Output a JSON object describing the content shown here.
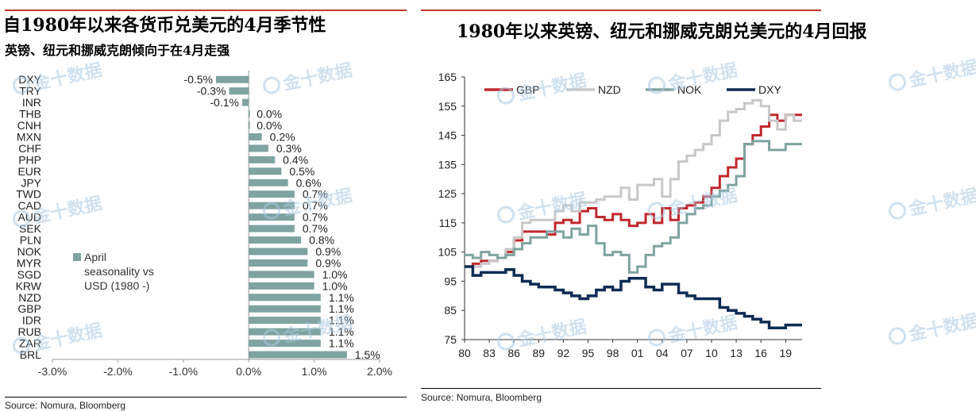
{
  "left": {
    "title": "自1980年以来各货币兑美元的4月季节性",
    "subtitle": "英镑、纽元和挪威克朗倾向于在4月走强",
    "source": "Source: Nomura, Bloomberg",
    "legend": [
      "April",
      "seasonality vs",
      "USD (1980 -)"
    ],
    "bar_color": "#7fa3a0"
  },
  "right": {
    "title": "1980年以来英镑、纽元和挪威克朗兑美元的4月回报",
    "source": "Source: Nomura, Bloomberg"
  },
  "watermark": "金十数据",
  "chart_data": [
    {
      "type": "bar",
      "orientation": "horizontal",
      "categories": [
        "DXY",
        "TRY",
        "INR",
        "THB",
        "CNH",
        "MXN",
        "CHF",
        "PHP",
        "EUR",
        "JPY",
        "TWD",
        "CAD",
        "AUD",
        "SEK",
        "PLN",
        "NOK",
        "MYR",
        "SGD",
        "KRW",
        "NZD",
        "GBP",
        "IDR",
        "RUB",
        "ZAR",
        "BRL"
      ],
      "values": [
        -0.5,
        -0.3,
        -0.1,
        0.0,
        0.0,
        0.2,
        0.3,
        0.4,
        0.5,
        0.6,
        0.7,
        0.7,
        0.7,
        0.7,
        0.8,
        0.9,
        0.9,
        1.0,
        1.0,
        1.1,
        1.1,
        1.1,
        1.1,
        1.1,
        1.5
      ],
      "labels": [
        "-0.5%",
        "-0.3%",
        "-0.1%",
        "0.0%",
        "0.0%",
        "0.2%",
        "0.3%",
        "0.4%",
        "0.5%",
        "0.6%",
        "0.7%",
        "0.7%",
        "0.7%",
        "0.7%",
        "0.8%",
        "0.9%",
        "0.9%",
        "1.0%",
        "1.0%",
        "1.1%",
        "1.1%",
        "1.1%",
        "1.1%",
        "1.1%",
        "1.5%"
      ],
      "xlim": [
        -3.0,
        2.0
      ],
      "xticks": [
        "-3.0%",
        "-2.0%",
        "-1.0%",
        "0.0%",
        "1.0%",
        "2.0%"
      ],
      "series_name": "April seasonality vs USD (1980 -)"
    },
    {
      "type": "line",
      "x": [
        "80",
        "81",
        "82",
        "83",
        "84",
        "85",
        "86",
        "87",
        "88",
        "89",
        "90",
        "91",
        "92",
        "93",
        "94",
        "95",
        "96",
        "97",
        "98",
        "99",
        "00",
        "01",
        "02",
        "03",
        "04",
        "05",
        "06",
        "07",
        "08",
        "09",
        "10",
        "11",
        "12",
        "13",
        "14",
        "15",
        "16",
        "17",
        "18",
        "19",
        "20",
        "21"
      ],
      "xticks": [
        "80",
        "83",
        "86",
        "89",
        "92",
        "95",
        "98",
        "01",
        "04",
        "07",
        "10",
        "13",
        "16",
        "19"
      ],
      "ylim": [
        75,
        165
      ],
      "yticks": [
        75,
        85,
        95,
        105,
        115,
        125,
        135,
        145,
        155,
        165
      ],
      "legend_position": "top-left",
      "series": [
        {
          "name": "GBP",
          "color": "#c0282d",
          "values": [
            100,
            101,
            102,
            102,
            103,
            105,
            109,
            112,
            112,
            112,
            111,
            115,
            116,
            115,
            119,
            120,
            117,
            116,
            118,
            116,
            114,
            115,
            118,
            115,
            120,
            116,
            120,
            121,
            122,
            124,
            127,
            131,
            134,
            137,
            142,
            145,
            148,
            152,
            150,
            152,
            152,
            152
          ]
        },
        {
          "name": "NZD",
          "color": "#c8c8c8",
          "values": [
            100,
            100,
            101,
            102,
            103,
            106,
            110,
            115,
            116,
            116,
            116,
            119,
            121,
            119,
            122,
            122,
            123,
            124,
            124,
            127,
            123,
            128,
            128,
            130,
            124,
            130,
            136,
            138,
            140,
            142,
            145,
            150,
            153,
            154,
            156,
            157,
            155,
            150,
            147,
            152,
            150,
            150
          ]
        },
        {
          "name": "NOK",
          "color": "#7fa3a0",
          "values": [
            104,
            103,
            105,
            104,
            103,
            104,
            106,
            108,
            110,
            110,
            112,
            112,
            110,
            113,
            111,
            114,
            108,
            104,
            105,
            104,
            98,
            100,
            104,
            107,
            108,
            110,
            115,
            118,
            120,
            121,
            124,
            126,
            128,
            131,
            142,
            143,
            143,
            140,
            140,
            142,
            142,
            142
          ]
        },
        {
          "name": "DXY",
          "color": "#0d2c54",
          "values": [
            100,
            97,
            98,
            98,
            98,
            99,
            97,
            95,
            94,
            93,
            93,
            92,
            91,
            90,
            89,
            90,
            92,
            93,
            92,
            95,
            96,
            96,
            93,
            92,
            94,
            94,
            91,
            90,
            89,
            89,
            89,
            86,
            85,
            84,
            83,
            82,
            81,
            79,
            79,
            80,
            80,
            80
          ]
        }
      ]
    }
  ]
}
